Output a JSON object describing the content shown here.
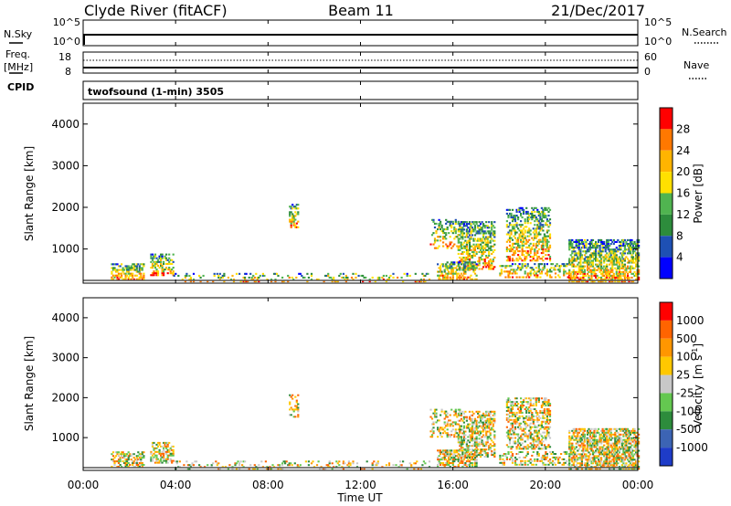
{
  "header": {
    "station": "Clyde River (fitACF)",
    "beam": "Beam 11",
    "date": "21/Dec/2017"
  },
  "top_panels": {
    "nsky_label": "N.Sky",
    "nsky_ticks": [
      "10^5",
      "10^0"
    ],
    "nsearch_label": "N.Search",
    "nsearch_ticks": [
      "10^5",
      "10^0"
    ],
    "freq_label_1": "Freq.",
    "freq_label_2": "[MHz]",
    "freq_ticks": [
      "18",
      "8"
    ],
    "nave_label": "Nave",
    "nave_ticks": [
      "60",
      "0"
    ],
    "cpid_label": "CPID",
    "cpid_value": "twofsound (1-min) 3505"
  },
  "chart_data": [
    {
      "type": "heatmap",
      "name": "power",
      "ylabel": "Slant Range [km]",
      "xlabel": "",
      "yticks": [
        "4000",
        "3000",
        "2000",
        "1000"
      ],
      "ylim": [
        180,
        4500
      ],
      "xlim_hours": [
        0,
        24
      ],
      "colorbar": {
        "label": "Power [dB]",
        "ticks": [
          "28",
          "24",
          "20",
          "16",
          "12",
          "8",
          "4"
        ],
        "range": [
          0,
          32
        ],
        "colors": [
          "#0000ff",
          "#1e50b4",
          "#2d8c3c",
          "#50b450",
          "#ffe000",
          "#ffb400",
          "#ff7800",
          "#ff0000"
        ]
      }
    },
    {
      "type": "heatmap",
      "name": "velocity",
      "ylabel": "Slant Range [km]",
      "xlabel": "Time UT",
      "yticks": [
        "4000",
        "3000",
        "2000",
        "1000"
      ],
      "ylim": [
        180,
        4500
      ],
      "xlim_hours": [
        0,
        24
      ],
      "xticks": [
        "00:00",
        "04:00",
        "08:00",
        "12:00",
        "16:00",
        "20:00",
        "00:00"
      ],
      "colorbar": {
        "label_main": "Velocity",
        "label_unit": "[m s",
        "label_exp": "-1",
        "label_close": "]",
        "ticks": [
          "1000",
          "500",
          "100",
          "25",
          "-25",
          "-100",
          "-500",
          "-1000"
        ],
        "colors": [
          "#1e3cc8",
          "#3c64b4",
          "#2d8c3c",
          "#64c850",
          "#c8c8c8",
          "#ffc800",
          "#ff9600",
          "#ff6400",
          "#ff0000"
        ]
      }
    }
  ],
  "scatter_regions": [
    {
      "t0": 1.2,
      "t1": 2.6,
      "r0": 250,
      "r1": 650,
      "d": 0.55
    },
    {
      "t0": 2.9,
      "t1": 3.9,
      "r0": 350,
      "r1": 850,
      "d": 0.5
    },
    {
      "t0": 3.9,
      "t1": 15.0,
      "r0": 200,
      "r1": 400,
      "d": 0.2
    },
    {
      "t0": 8.9,
      "t1": 9.3,
      "r0": 1500,
      "r1": 2050,
      "d": 0.35
    },
    {
      "t0": 15.0,
      "t1": 16.3,
      "r0": 1000,
      "r1": 1700,
      "d": 0.3
    },
    {
      "t0": 16.2,
      "t1": 17.8,
      "r0": 500,
      "r1": 1650,
      "d": 0.5
    },
    {
      "t0": 15.3,
      "t1": 17.0,
      "r0": 250,
      "r1": 700,
      "d": 0.55
    },
    {
      "t0": 18.3,
      "t1": 20.2,
      "r0": 700,
      "r1": 2000,
      "d": 0.45
    },
    {
      "t0": 18.0,
      "t1": 21.0,
      "r0": 300,
      "r1": 650,
      "d": 0.35
    },
    {
      "t0": 21.0,
      "t1": 24.0,
      "r0": 200,
      "r1": 1200,
      "d": 0.6
    }
  ]
}
